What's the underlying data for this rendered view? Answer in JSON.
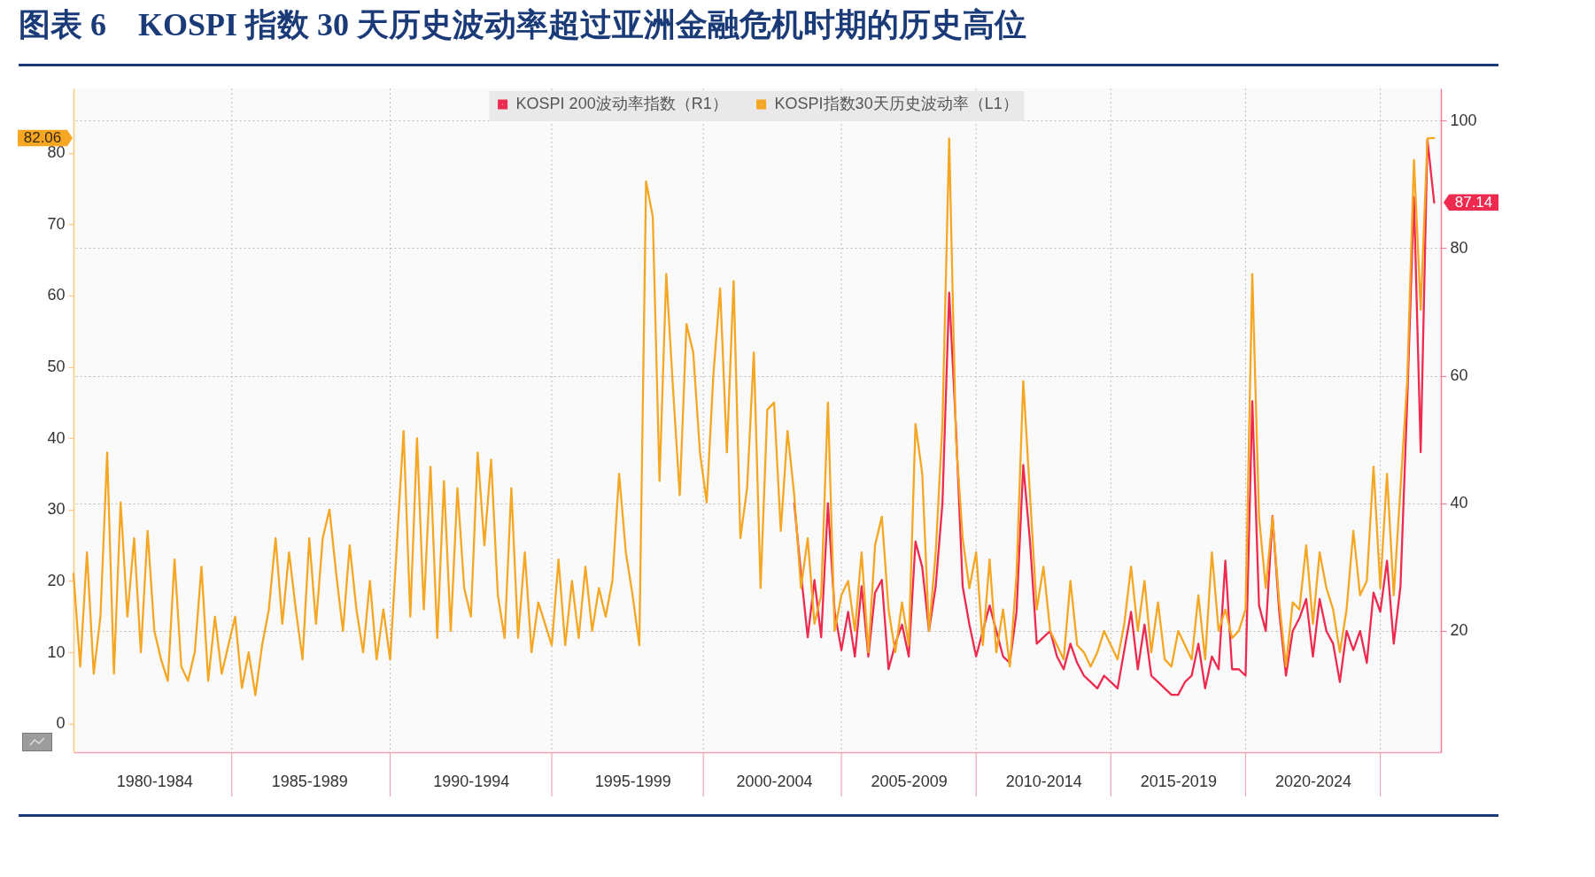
{
  "chart_data": {
    "type": "line",
    "title": "图表 6　KOSPI 指数 30 天历史波动率超过亚洲金融危机时期的历史高位",
    "categories": [
      null,
      null,
      null,
      null,
      null,
      null,
      null,
      null,
      null,
      null,
      null,
      null,
      "1980-1984",
      null,
      null,
      null,
      null,
      null,
      null,
      null,
      null,
      null,
      null,
      null,
      null,
      null,
      null,
      null,
      null,
      null,
      null,
      null,
      null,
      null,
      null,
      "1985-1989",
      null,
      null,
      null,
      null,
      null,
      null,
      null,
      null,
      null,
      null,
      null,
      null,
      null,
      null,
      null,
      null,
      null,
      null,
      null,
      null,
      null,
      null,
      null,
      "1990-1994",
      null,
      null,
      null,
      null,
      null,
      null,
      null,
      null,
      null,
      null,
      null,
      null,
      null,
      null,
      null,
      null,
      null,
      null,
      null,
      null,
      null,
      null,
      null,
      "1995-1999",
      null,
      null,
      null,
      null,
      null,
      null,
      null,
      null,
      null,
      null,
      null,
      null,
      null,
      null,
      null,
      null,
      null,
      null,
      null,
      null,
      "2000-2004",
      null,
      null,
      null,
      null,
      null,
      null,
      null,
      null,
      null,
      null,
      null,
      null,
      null,
      null,
      null,
      null,
      null,
      null,
      null,
      "2005-2009",
      null,
      null,
      null,
      null,
      null,
      null,
      null,
      null,
      null,
      null,
      null,
      null,
      null,
      null,
      null,
      null,
      null,
      null,
      null,
      "2010-2014",
      null,
      null,
      null,
      null,
      null,
      null,
      null,
      null,
      null,
      null,
      null,
      null,
      null,
      null,
      null,
      null,
      null,
      null,
      null,
      "2015-2019",
      null,
      null,
      null,
      null,
      null,
      null,
      null,
      null,
      null,
      null,
      null,
      null,
      null,
      null,
      null,
      null,
      null,
      null,
      null,
      "2020-2024",
      null,
      null,
      null,
      null,
      null,
      null,
      null,
      null,
      null,
      null,
      null,
      null,
      null,
      null,
      null,
      null,
      null,
      null,
      null
    ],
    "ylim": [
      -4,
      89
    ],
    "yticks": [
      0,
      10,
      20,
      30,
      40,
      50,
      60,
      70,
      80
    ],
    "y2lim": [
      1,
      105
    ],
    "y2ticks": [
      20,
      40,
      60,
      80,
      100
    ],
    "grid": true,
    "legend": "top",
    "annotations": [
      "87.14",
      "82.06"
    ],
    "series": [
      {
        "name": "KOSPI 200波动率指数（R1）",
        "color": "#ee2a4f",
        "axis": "y2",
        "values": [
          null,
          null,
          null,
          null,
          null,
          null,
          null,
          null,
          null,
          null,
          null,
          null,
          null,
          null,
          null,
          null,
          null,
          null,
          null,
          null,
          null,
          null,
          null,
          null,
          null,
          null,
          null,
          null,
          null,
          null,
          null,
          null,
          null,
          null,
          null,
          null,
          null,
          null,
          null,
          null,
          null,
          null,
          null,
          null,
          null,
          null,
          null,
          null,
          null,
          null,
          null,
          null,
          null,
          null,
          null,
          null,
          null,
          null,
          null,
          null,
          null,
          null,
          null,
          null,
          null,
          null,
          null,
          null,
          null,
          null,
          null,
          null,
          null,
          null,
          null,
          null,
          null,
          null,
          null,
          null,
          null,
          null,
          null,
          null,
          null,
          null,
          null,
          null,
          null,
          null,
          null,
          null,
          null,
          null,
          null,
          null,
          null,
          null,
          null,
          null,
          null,
          null,
          null,
          null,
          null,
          null,
          null,
          40,
          29,
          19,
          28,
          19,
          40,
          23,
          17,
          23,
          16,
          27,
          16,
          26,
          28,
          14,
          18,
          21,
          16,
          34,
          30,
          20,
          27,
          40,
          73,
          52,
          27,
          21,
          16,
          20,
          24,
          20,
          16,
          15,
          23,
          46,
          34,
          18,
          19,
          20,
          16,
          14,
          18,
          15,
          13,
          12,
          11,
          13,
          12,
          11,
          17,
          23,
          14,
          21,
          13,
          12,
          11,
          10,
          10,
          12,
          13,
          18,
          11,
          16,
          14,
          31,
          14,
          14,
          13,
          56,
          24,
          20,
          38,
          23,
          13,
          20,
          22,
          25,
          16,
          25,
          20,
          18,
          12,
          20,
          17,
          20,
          15,
          26,
          23,
          31,
          18,
          27,
          56,
          88,
          48,
          97,
          87.14,
          null
        ]
      },
      {
        "name": "KOSPI指数30天历史波动率（L1）",
        "color": "#f5a623",
        "axis": "y",
        "values": [
          21,
          8,
          24,
          7,
          15,
          38,
          7,
          31,
          15,
          26,
          10,
          27,
          13,
          9,
          6,
          23,
          8,
          6,
          10,
          22,
          6,
          15,
          7,
          11,
          15,
          5,
          10,
          4,
          11,
          16,
          26,
          14,
          24,
          16,
          9,
          26,
          14,
          26,
          30,
          21,
          13,
          25,
          16,
          10,
          20,
          9,
          16,
          9,
          25,
          41,
          15,
          40,
          16,
          36,
          12,
          34,
          13,
          33,
          19,
          15,
          38,
          25,
          37,
          18,
          12,
          33,
          12,
          24,
          10,
          17,
          14,
          11,
          23,
          11,
          20,
          12,
          22,
          13,
          19,
          15,
          20,
          35,
          24,
          18,
          11,
          76,
          71,
          34,
          63,
          47,
          32,
          56,
          52,
          38,
          31,
          49,
          61,
          38,
          62,
          26,
          33,
          52,
          19,
          44,
          45,
          27,
          41,
          32,
          19,
          26,
          14,
          18,
          45,
          13,
          18,
          20,
          13,
          24,
          10,
          25,
          29,
          16,
          10,
          17,
          11,
          42,
          35,
          13,
          24,
          42,
          82,
          40,
          26,
          19,
          24,
          11,
          23,
          10,
          16,
          8,
          21,
          48,
          32,
          16,
          22,
          13,
          11,
          9,
          20,
          11,
          10,
          8,
          10,
          13,
          11,
          9,
          14,
          22,
          13,
          20,
          10,
          17,
          9,
          8,
          13,
          11,
          9,
          18,
          9,
          24,
          13,
          16,
          12,
          13,
          16,
          63,
          29,
          19,
          29,
          17,
          8,
          17,
          16,
          25,
          14,
          24,
          19,
          16,
          10,
          16,
          27,
          18,
          20,
          36,
          19,
          35,
          18,
          33,
          48,
          79,
          58,
          82,
          82.06,
          null
        ]
      }
    ]
  }
}
